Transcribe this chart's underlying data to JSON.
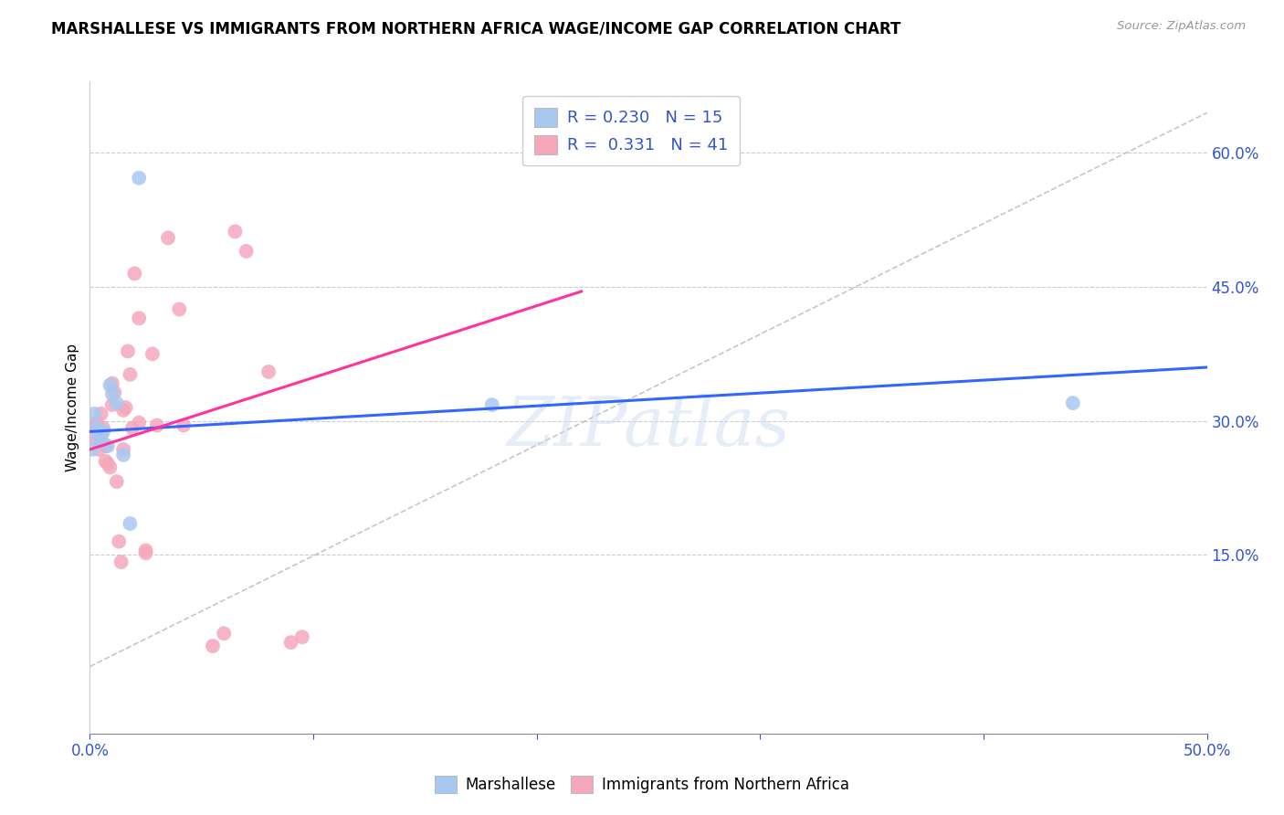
{
  "title": "MARSHALLESE VS IMMIGRANTS FROM NORTHERN AFRICA WAGE/INCOME GAP CORRELATION CHART",
  "source": "Source: ZipAtlas.com",
  "ylabel": "Wage/Income Gap",
  "xlim": [
    0.0,
    0.5
  ],
  "ylim": [
    -0.05,
    0.68
  ],
  "xticks": [
    0.0,
    0.1,
    0.2,
    0.3,
    0.4,
    0.5
  ],
  "ytick_vals": [
    0.15,
    0.3,
    0.45,
    0.6
  ],
  "blue_color": "#a8c8f0",
  "pink_color": "#f5a8bc",
  "blue_line_color": "#3366ff",
  "pink_line_color": "#ff3399",
  "ref_line_color": "#b8b8b8",
  "watermark": "ZIPatlas",
  "legend_R_blue": "0.230",
  "legend_N_blue": "15",
  "legend_R_pink": "0.331",
  "legend_N_pink": "41",
  "blue_points": [
    [
      0.001,
      0.268
    ],
    [
      0.002,
      0.308
    ],
    [
      0.003,
      0.292
    ],
    [
      0.004,
      0.282
    ],
    [
      0.005,
      0.278
    ],
    [
      0.006,
      0.288
    ],
    [
      0.008,
      0.272
    ],
    [
      0.009,
      0.34
    ],
    [
      0.01,
      0.33
    ],
    [
      0.012,
      0.32
    ],
    [
      0.015,
      0.262
    ],
    [
      0.018,
      0.185
    ],
    [
      0.022,
      0.572
    ],
    [
      0.18,
      0.318
    ],
    [
      0.44,
      0.32
    ]
  ],
  "pink_points": [
    [
      0.001,
      0.282
    ],
    [
      0.002,
      0.295
    ],
    [
      0.003,
      0.298
    ],
    [
      0.004,
      0.268
    ],
    [
      0.004,
      0.288
    ],
    [
      0.005,
      0.282
    ],
    [
      0.005,
      0.308
    ],
    [
      0.006,
      0.292
    ],
    [
      0.007,
      0.255
    ],
    [
      0.007,
      0.272
    ],
    [
      0.008,
      0.252
    ],
    [
      0.009,
      0.248
    ],
    [
      0.01,
      0.318
    ],
    [
      0.01,
      0.342
    ],
    [
      0.011,
      0.332
    ],
    [
      0.012,
      0.232
    ],
    [
      0.013,
      0.165
    ],
    [
      0.014,
      0.142
    ],
    [
      0.015,
      0.268
    ],
    [
      0.015,
      0.312
    ],
    [
      0.016,
      0.315
    ],
    [
      0.017,
      0.378
    ],
    [
      0.018,
      0.352
    ],
    [
      0.019,
      0.292
    ],
    [
      0.02,
      0.465
    ],
    [
      0.022,
      0.415
    ],
    [
      0.022,
      0.298
    ],
    [
      0.025,
      0.155
    ],
    [
      0.025,
      0.152
    ],
    [
      0.028,
      0.375
    ],
    [
      0.03,
      0.295
    ],
    [
      0.035,
      0.505
    ],
    [
      0.04,
      0.425
    ],
    [
      0.042,
      0.295
    ],
    [
      0.055,
      0.048
    ],
    [
      0.06,
      0.062
    ],
    [
      0.065,
      0.512
    ],
    [
      0.07,
      0.49
    ],
    [
      0.08,
      0.355
    ],
    [
      0.09,
      0.052
    ],
    [
      0.095,
      0.058
    ]
  ],
  "blue_line": [
    [
      0.0,
      0.288
    ],
    [
      0.5,
      0.36
    ]
  ],
  "pink_line": [
    [
      0.0,
      0.268
    ],
    [
      0.22,
      0.445
    ]
  ],
  "ref_line": [
    [
      0.0,
      0.025
    ],
    [
      0.5,
      0.645
    ]
  ]
}
